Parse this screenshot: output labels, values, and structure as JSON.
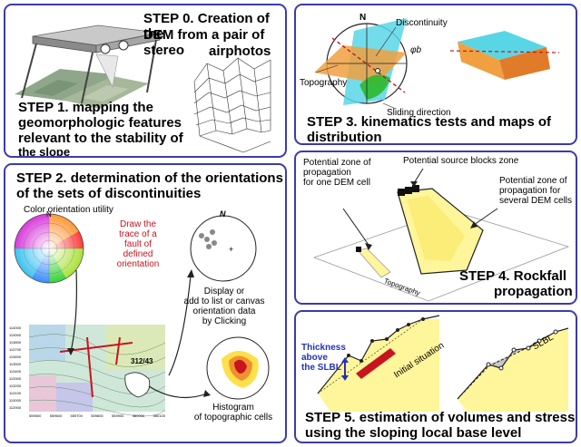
{
  "panels": {
    "step0": {
      "line1": "STEP 0.  Creation of the",
      "line2": "DEM from a pair of stereo",
      "line3": "airphotos"
    },
    "step1": {
      "line1": "STEP 1.  mapping the",
      "line2": "geomorphologic features",
      "line3": "relevant to the stability of",
      "line4": "the slope"
    },
    "step2": {
      "line1": "STEP 2.  determination of the orientations",
      "line2": "of the sets of discontinuities",
      "color_util": "Color orientation utility",
      "trace_note": [
        "Draw the",
        "trace of a",
        "fault of",
        "defined",
        "orientation"
      ],
      "display_note": [
        "Display or",
        "add to list or canvas",
        "orientation data",
        "by Clicking"
      ],
      "histogram_note": [
        "Histogram",
        "of topographic cells"
      ],
      "measure": "312/43",
      "north": "N",
      "y_ticks": [
        "114000",
        "113900",
        "113800",
        "113700",
        "113600",
        "113500",
        "113400",
        "113300",
        "113200",
        "113100",
        "113000",
        "112900"
      ],
      "x_ticks": [
        "559500",
        "559600",
        "559700",
        "559800",
        "559900",
        "560000",
        "560100"
      ]
    },
    "step3": {
      "title_line1": "STEP 3.   kinematics tests and maps of",
      "title_line2": "distribution",
      "north": "N",
      "discontinuity": "Discontinuity",
      "topography": "Topography",
      "sliding": "Sliding direction",
      "phi": "φb"
    },
    "step4": {
      "zone_one": [
        "Potential zone of",
        "propagation",
        "for one DEM cell"
      ],
      "source": "Potential source blocks zone",
      "zone_several": [
        "Potential zone of",
        "propagation for",
        "several DEM cells"
      ],
      "title_line1": "STEP 4. Rockfall",
      "title_line2": "propagation",
      "topography": "Topography"
    },
    "step5": {
      "thickness": [
        "Thickness",
        "above",
        "the SLBL"
      ],
      "initial": "Initial situation",
      "slbl": "SLBL",
      "title_line1": "STEP 5.   estimation of volumes and stress",
      "title_line2": "using the sloping local base level"
    }
  },
  "colors": {
    "border": "#3b3bb0",
    "red": "#c8141e",
    "blue": "#2431b8",
    "yellow": "#fff59a",
    "cyan": "#59d6e6",
    "orange": "#f0a040",
    "green": "#2eb82e"
  }
}
